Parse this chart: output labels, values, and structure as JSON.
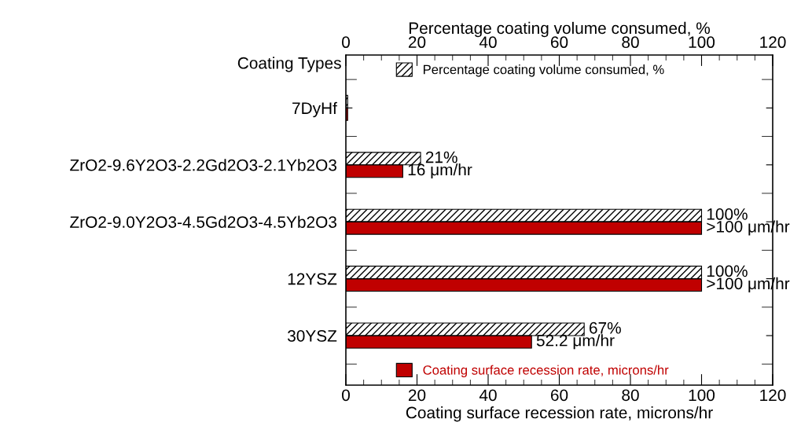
{
  "chart_data": {
    "type": "bar",
    "orientation": "horizontal",
    "categories": [
      "7DyHf",
      "ZrO2-9.6Y2O3-2.2Gd2O3-2.1Yb2O3",
      "ZrO2-9.0Y2O3-4.5Gd2O3-4.5Yb2O3",
      "12YSZ",
      "30YSZ"
    ],
    "series": [
      {
        "name": "Percentage coating volume consumed, %",
        "color": "#000000",
        "axis": "x2",
        "values": [
          0.5,
          21,
          100,
          100,
          67
        ],
        "value_labels": [
          null,
          "21%",
          "100%",
          "100%",
          "67%"
        ]
      },
      {
        "name": "Coating surface recession rate, microns/hr",
        "color": "#c00000",
        "values": [
          0.5,
          16,
          100,
          100,
          52.2
        ],
        "value_labels": [
          null,
          "16 μm/hr",
          ">100 μm/hr",
          ">100 μm/hr",
          "52.2 μm/hr"
        ]
      }
    ],
    "xlabel": "Coating surface recession rate, microns/hr",
    "x2label": "Percentage coating volume consumed, %",
    "ylabel": "Coating Types",
    "xlim": [
      0,
      120
    ],
    "xticks": [
      0,
      20,
      40,
      60,
      80,
      100,
      120
    ],
    "x2lim": [
      0,
      120
    ],
    "x2ticks": [
      0,
      20,
      40,
      60,
      80,
      100,
      120
    ],
    "legend": "left",
    "grid": false
  }
}
